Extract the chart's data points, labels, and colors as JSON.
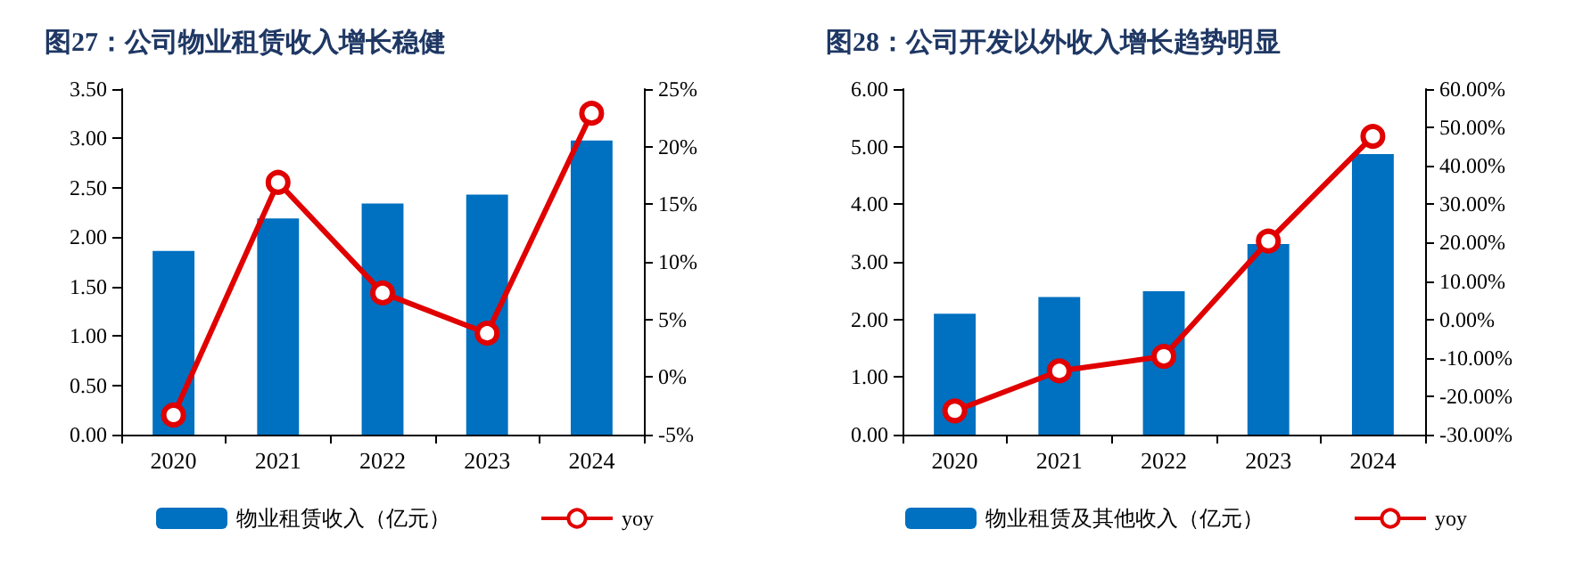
{
  "chart_data": [
    {
      "type": "bar",
      "title": "图27：公司物业租赁收入增长稳健",
      "categories": [
        "2020",
        "2021",
        "2022",
        "2023",
        "2024"
      ],
      "series": [
        {
          "name": "物业租赁收入（亿元）",
          "color": "#0070c0",
          "values": [
            1.86,
            2.19,
            2.34,
            2.43,
            2.98
          ]
        },
        {
          "name": "yoy",
          "type": "line",
          "axis": "y2",
          "color": "#e00000",
          "marker": "circle",
          "values": [
            -3.3,
            16.9,
            7.3,
            3.8,
            22.9
          ]
        }
      ],
      "ylim": [
        0,
        3.5
      ],
      "yticks": [
        {
          "value": 0,
          "label": "0.00"
        },
        {
          "value": 0.5,
          "label": "0.50"
        },
        {
          "value": 1,
          "label": "1.00"
        },
        {
          "value": 1.5,
          "label": "1.50"
        },
        {
          "value": 2,
          "label": "2.00"
        },
        {
          "value": 2.5,
          "label": "2.50"
        },
        {
          "value": 3,
          "label": "3.00"
        },
        {
          "value": 3.5,
          "label": "3.50"
        }
      ],
      "y2lim": [
        -5,
        25
      ],
      "y2ticks": [
        {
          "value": -5,
          "label": "-5%"
        },
        {
          "value": 0,
          "label": "0%"
        },
        {
          "value": 5,
          "label": "5%"
        },
        {
          "value": 10,
          "label": "10%"
        },
        {
          "value": 15,
          "label": "15%"
        },
        {
          "value": 20,
          "label": "20%"
        },
        {
          "value": 25,
          "label": "25%"
        }
      ],
      "legend": "bottom"
    },
    {
      "type": "bar",
      "title": "图28：公司开发以外收入增长趋势明显",
      "categories": [
        "2020",
        "2021",
        "2022",
        "2023",
        "2024"
      ],
      "series": [
        {
          "name": "物业租赁及其他收入（亿元）",
          "color": "#0070c0",
          "values": [
            2.1,
            2.39,
            2.49,
            3.31,
            4.87
          ]
        },
        {
          "name": "yoy",
          "type": "line",
          "axis": "y2",
          "color": "#e00000",
          "marker": "circle",
          "values": [
            -23.8,
            -13.4,
            -9.6,
            20.4,
            47.7
          ]
        }
      ],
      "ylim": [
        0,
        6
      ],
      "yticks": [
        {
          "value": 0,
          "label": "0.00"
        },
        {
          "value": 1,
          "label": "1.00"
        },
        {
          "value": 2,
          "label": "2.00"
        },
        {
          "value": 3,
          "label": "3.00"
        },
        {
          "value": 4,
          "label": "4.00"
        },
        {
          "value": 5,
          "label": "5.00"
        },
        {
          "value": 6,
          "label": "6.00"
        }
      ],
      "y2lim": [
        -30,
        60
      ],
      "y2ticks": [
        {
          "value": -30,
          "label": "-30.00%"
        },
        {
          "value": -20,
          "label": "-20.00%"
        },
        {
          "value": -10,
          "label": "-10.00%"
        },
        {
          "value": 0,
          "label": "0.00%"
        },
        {
          "value": 10,
          "label": "10.00%"
        },
        {
          "value": 20,
          "label": "20.00%"
        },
        {
          "value": 30,
          "label": "30.00%"
        },
        {
          "value": 40,
          "label": "40.00%"
        },
        {
          "value": 50,
          "label": "50.00%"
        },
        {
          "value": 60,
          "label": "60.00%"
        }
      ],
      "legend": "bottom"
    }
  ]
}
